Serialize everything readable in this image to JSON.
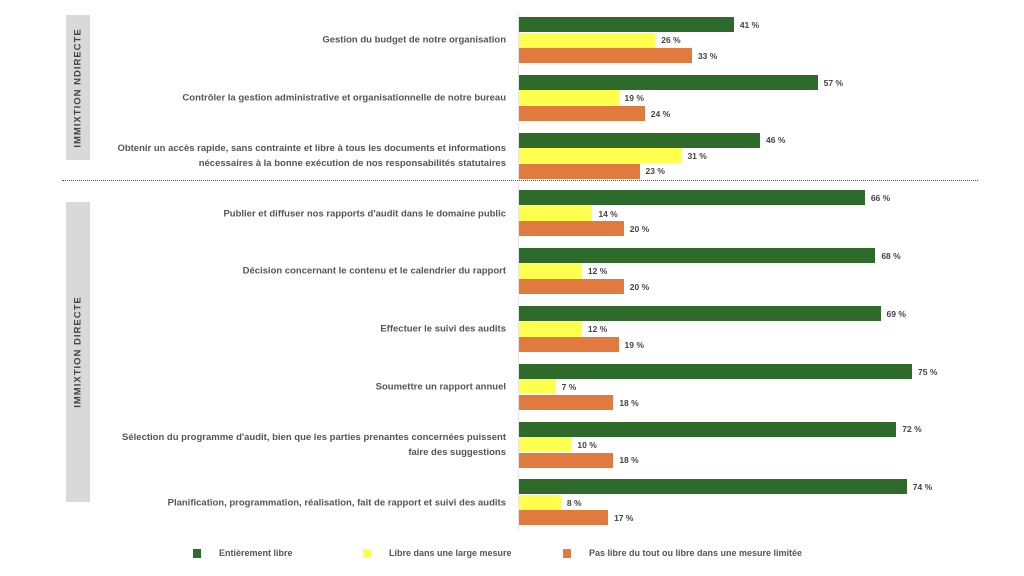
{
  "chart_data": {
    "type": "bar",
    "orientation": "horizontal",
    "xlim": [
      0,
      100
    ],
    "groups": [
      {
        "label": "IMMIXTION NDIRECTE",
        "rows": [
          0,
          1,
          2
        ]
      },
      {
        "label": "IMMIXTION DIRECTE",
        "rows": [
          3,
          4,
          5,
          6,
          7,
          8
        ]
      }
    ],
    "categories": [
      "Gestion du budget de notre organisation",
      "Contrôler la gestion administrative et organisationnelle de notre bureau",
      "Obtenir un accès rapide, sans contrainte et libre à tous les documents et informations nécessaires à la bonne exécution de nos responsabilités statutaires",
      "Publier et diffuser nos rapports d'audit dans le domaine public",
      "Décision concernant le contenu et le calendrier du rapport",
      "Effectuer le suivi des audits",
      "Soumettre un rapport annuel",
      "Sélection du programme d'audit, bien que les parties prenantes concernées puissent faire des suggestions",
      "Planification, programmation, réalisation, fait de rapport et suivi des audits"
    ],
    "series": [
      {
        "name": "Entièrement libre",
        "color": "#2e6b2a",
        "values": [
          41,
          57,
          46,
          66,
          68,
          69,
          75,
          72,
          74
        ]
      },
      {
        "name": "Libre dans une large mesure",
        "color": "#ffff4d",
        "values": [
          26,
          19,
          31,
          14,
          12,
          12,
          7,
          10,
          8
        ]
      },
      {
        "name": "Pas libre du tout ou libre dans une mesure limitée",
        "color": "#e07a3f",
        "values": [
          33,
          24,
          23,
          20,
          20,
          19,
          18,
          18,
          17
        ]
      }
    ],
    "value_suffix": " %",
    "legend": "bottom"
  }
}
